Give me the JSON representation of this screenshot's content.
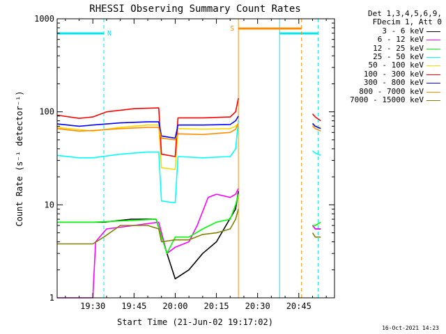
{
  "chart_data": {
    "type": "line",
    "title": "RHESSI Observing Summary Count Rates",
    "xlabel": "Start Time (21-Jun-02 19:17:02)",
    "ylabel": "Count Rate (s⁻¹ detector⁻¹)",
    "yscale": "log",
    "ylim": [
      1,
      1000
    ],
    "xlim": [
      "19:17",
      "20:58"
    ],
    "x_ticks": [
      "19:30",
      "19:45",
      "20:00",
      "20:15",
      "20:30",
      "20:45"
    ],
    "y_ticks": [
      "1",
      "10",
      "100",
      "1000"
    ],
    "legend_header": [
      "Det 1,3,4,5,6,9,",
      "FDecim 1, Att 0"
    ],
    "legend_position": "right",
    "series": [
      {
        "name": "3 - 6 keV",
        "color": "#000000",
        "points": [
          [
            "19:17",
            6.5
          ],
          [
            "19:25",
            6.5
          ],
          [
            "19:34",
            6.5
          ],
          [
            "19:44",
            7
          ],
          [
            "19:53",
            7
          ],
          [
            "19:57",
            3
          ],
          [
            "20:00",
            1.6
          ],
          [
            "20:05",
            2
          ],
          [
            "20:10",
            3
          ],
          [
            "20:15",
            4
          ],
          [
            "20:22",
            9
          ],
          [
            "20:23",
            14
          ]
        ],
        "points2": [
          [
            "20:50",
            6
          ],
          [
            "20:51",
            5.5
          ],
          [
            "20:53",
            5.5
          ]
        ]
      },
      {
        "name": "6 - 12 keV",
        "color": "#ff00ff",
        "points": [
          [
            "19:17",
            1
          ],
          [
            "19:30",
            1
          ],
          [
            "19:31",
            4
          ],
          [
            "19:35",
            5.5
          ],
          [
            "19:45",
            6
          ],
          [
            "19:54",
            6.5
          ],
          [
            "19:57",
            3
          ],
          [
            "20:00",
            3.5
          ],
          [
            "20:05",
            4
          ],
          [
            "20:08",
            6
          ],
          [
            "20:12",
            12
          ],
          [
            "20:15",
            13
          ],
          [
            "20:20",
            12
          ],
          [
            "20:22",
            13
          ],
          [
            "20:23",
            15
          ]
        ],
        "points2": [
          [
            "20:50",
            6
          ],
          [
            "20:51",
            5.5
          ],
          [
            "20:53",
            5.5
          ]
        ]
      },
      {
        "name": "12 - 25 keV",
        "color": "#00ff00",
        "points": [
          [
            "19:17",
            6.5
          ],
          [
            "19:30",
            6.5
          ],
          [
            "19:45",
            6.8
          ],
          [
            "19:53",
            7
          ],
          [
            "19:57",
            3
          ],
          [
            "20:00",
            4.5
          ],
          [
            "20:05",
            4.5
          ],
          [
            "20:10",
            5.5
          ],
          [
            "20:15",
            6.5
          ],
          [
            "20:20",
            7
          ],
          [
            "20:22",
            10
          ],
          [
            "20:23",
            13
          ]
        ],
        "points2": [
          [
            "20:50",
            6
          ],
          [
            "20:51",
            6
          ],
          [
            "20:53",
            6.5
          ]
        ]
      },
      {
        "name": "25 - 50 keV",
        "color": "#00ffff",
        "points": [
          [
            "19:17",
            34
          ],
          [
            "19:25",
            32
          ],
          [
            "19:30",
            32
          ],
          [
            "19:40",
            35
          ],
          [
            "19:50",
            37
          ],
          [
            "19:54",
            37
          ],
          [
            "19:55",
            11
          ],
          [
            "20:00",
            10.5
          ],
          [
            "20:01",
            33
          ],
          [
            "20:10",
            32
          ],
          [
            "20:20",
            33
          ],
          [
            "20:22",
            40
          ],
          [
            "20:23",
            80
          ]
        ],
        "points2": [
          [
            "20:50",
            38
          ],
          [
            "20:51",
            36
          ],
          [
            "20:53",
            34
          ]
        ]
      },
      {
        "name": "50 - 100 keV",
        "color": "#ffd700",
        "points": [
          [
            "19:17",
            68
          ],
          [
            "19:30",
            62
          ],
          [
            "19:40",
            68
          ],
          [
            "19:50",
            72
          ],
          [
            "19:54",
            72
          ],
          [
            "19:55",
            25
          ],
          [
            "20:00",
            24
          ],
          [
            "20:01",
            66
          ],
          [
            "20:10",
            65
          ],
          [
            "20:20",
            66
          ],
          [
            "20:22",
            70
          ],
          [
            "20:23",
            75
          ]
        ],
        "points2": [
          [
            "20:50",
            72
          ],
          [
            "20:51",
            70
          ],
          [
            "20:53",
            68
          ]
        ]
      },
      {
        "name": "100 - 300 keV",
        "color": "#ff0000",
        "points": [
          [
            "19:17",
            92
          ],
          [
            "19:25",
            85
          ],
          [
            "19:30",
            88
          ],
          [
            "19:35",
            100
          ],
          [
            "19:45",
            108
          ],
          [
            "19:54",
            110
          ],
          [
            "19:55",
            35
          ],
          [
            "20:00",
            33
          ],
          [
            "20:01",
            86
          ],
          [
            "20:10",
            86
          ],
          [
            "20:20",
            88
          ],
          [
            "20:22",
            100
          ],
          [
            "20:23",
            140
          ]
        ],
        "points2": [
          [
            "20:50",
            95
          ],
          [
            "20:51",
            88
          ],
          [
            "20:53",
            80
          ]
        ]
      },
      {
        "name": "300 - 800 keV",
        "color": "#0000ff",
        "points": [
          [
            "19:17",
            74
          ],
          [
            "19:25",
            70
          ],
          [
            "19:30",
            72
          ],
          [
            "19:40",
            76
          ],
          [
            "19:50",
            78
          ],
          [
            "19:54",
            78
          ],
          [
            "19:55",
            55
          ],
          [
            "20:00",
            52
          ],
          [
            "20:01",
            72
          ],
          [
            "20:10",
            72
          ],
          [
            "20:20",
            73
          ],
          [
            "20:22",
            80
          ],
          [
            "20:23",
            90
          ]
        ],
        "points2": [
          [
            "20:50",
            75
          ],
          [
            "20:51",
            70
          ],
          [
            "20:53",
            66
          ]
        ]
      },
      {
        "name": "800 - 7000 keV",
        "color": "#ff8c00",
        "points": [
          [
            "19:17",
            66
          ],
          [
            "19:25",
            62
          ],
          [
            "19:30",
            63
          ],
          [
            "19:40",
            66
          ],
          [
            "19:50",
            68
          ],
          [
            "19:54",
            68
          ],
          [
            "19:55",
            52
          ],
          [
            "20:00",
            50
          ],
          [
            "20:01",
            58
          ],
          [
            "20:10",
            57
          ],
          [
            "20:20",
            60
          ],
          [
            "20:22",
            65
          ],
          [
            "20:23",
            75
          ]
        ],
        "points2": [
          [
            "20:50",
            70
          ],
          [
            "20:51",
            66
          ],
          [
            "20:53",
            62
          ]
        ]
      },
      {
        "name": "7000 - 15000 keV",
        "color": "#808000",
        "points": [
          [
            "19:17",
            3.8
          ],
          [
            "19:30",
            3.8
          ],
          [
            "19:34",
            4.5
          ],
          [
            "19:40",
            6
          ],
          [
            "19:50",
            6
          ],
          [
            "19:54",
            5.5
          ],
          [
            "19:55",
            4
          ],
          [
            "20:00",
            4.2
          ],
          [
            "20:05",
            4.2
          ],
          [
            "20:10",
            4.8
          ],
          [
            "20:15",
            5
          ],
          [
            "20:20",
            5.5
          ],
          [
            "20:22",
            7
          ],
          [
            "20:23",
            9
          ]
        ],
        "points2": [
          [
            "20:50",
            5
          ],
          [
            "20:51",
            4.5
          ],
          [
            "20:53",
            4.5
          ]
        ]
      }
    ],
    "annotations": {
      "night_label": "N",
      "saa_label": "S",
      "night_intervals": [
        [
          "19:17",
          "19:34"
        ],
        [
          "20:38",
          "20:52"
        ]
      ],
      "saa_interval": [
        "20:23",
        "20:46"
      ]
    },
    "timestamp": "16-Oct-2021 14:23"
  }
}
